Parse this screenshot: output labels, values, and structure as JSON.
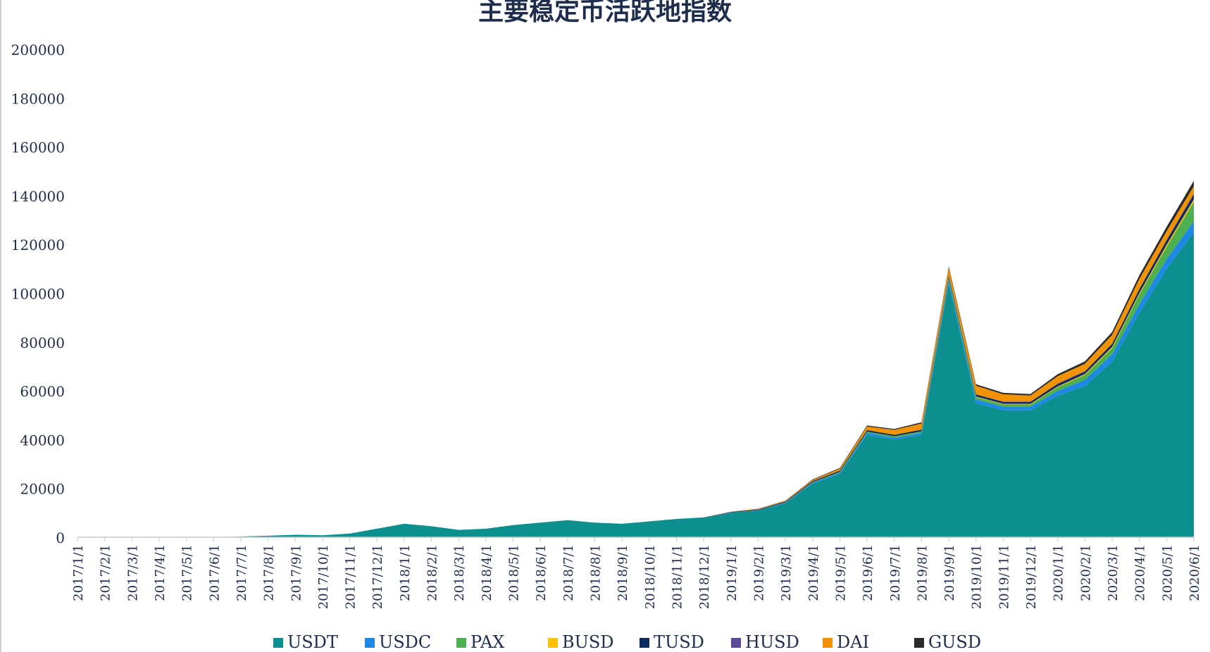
{
  "chart_data": {
    "type": "area",
    "stacked": true,
    "title": "主要稳定币活跃地指数",
    "xlabel": "",
    "ylabel": "",
    "ylim": [
      0,
      200000
    ],
    "y_ticks": [
      "200000",
      "180000",
      "160000",
      "140000",
      "120000",
      "100000",
      "80000",
      "60000",
      "40000",
      "20000",
      "0"
    ],
    "x_ticks": [
      "2017/1/1",
      "2017/2/1",
      "2017/3/1",
      "2017/4/1",
      "2017/5/1",
      "2017/6/1",
      "2017/7/1",
      "2017/8/1",
      "2017/9/1",
      "2017/10/1",
      "2017/11/1",
      "2017/12/1",
      "2018/1/1",
      "2018/2/1",
      "2018/3/1",
      "2018/4/1",
      "2018/5/1",
      "2018/6/1",
      "2018/7/1",
      "2018/8/1",
      "2018/9/1",
      "2018/10/1",
      "2018/11/1",
      "2018/12/1",
      "2019/1/1",
      "2019/2/1",
      "2019/3/1",
      "2019/4/1",
      "2019/5/1",
      "2019/6/1",
      "2019/7/1",
      "2019/8/1",
      "2019/9/1",
      "2019/10/1",
      "2019/11/1",
      "2019/12/1",
      "2020/1/1",
      "2020/2/1",
      "2020/3/1",
      "2020/4/1",
      "2020/5/1",
      "2020/6/1"
    ],
    "grid": false,
    "legend_position": "bottom",
    "series": [
      {
        "name": "USDT",
        "color": "#0e8f8f",
        "values": [
          0,
          0,
          0,
          0,
          0,
          0,
          300,
          600,
          1000,
          800,
          1500,
          3500,
          5500,
          4500,
          3000,
          3500,
          5000,
          6000,
          7000,
          6000,
          5500,
          6500,
          7500,
          8000,
          10000,
          11000,
          14000,
          22000,
          26000,
          42000,
          40000,
          42000,
          104000,
          55000,
          52000,
          52000,
          58000,
          62000,
          72000,
          92000,
          110000,
          125000
        ]
      },
      {
        "name": "USDC",
        "color": "#1e88e5",
        "values": [
          0,
          0,
          0,
          0,
          0,
          0,
          0,
          0,
          0,
          0,
          0,
          0,
          0,
          0,
          0,
          0,
          0,
          0,
          0,
          0,
          0,
          0,
          0,
          0,
          100,
          100,
          200,
          400,
          500,
          800,
          800,
          800,
          1500,
          1500,
          1500,
          1500,
          2000,
          2500,
          3000,
          3500,
          4000,
          4500
        ]
      },
      {
        "name": "PAX",
        "color": "#4caf50",
        "values": [
          0,
          0,
          0,
          0,
          0,
          0,
          0,
          0,
          0,
          0,
          0,
          0,
          0,
          0,
          0,
          0,
          0,
          0,
          0,
          0,
          0,
          0,
          0,
          0,
          0,
          0,
          100,
          200,
          300,
          500,
          600,
          600,
          1000,
          1000,
          1000,
          1000,
          1500,
          2000,
          2500,
          4000,
          5000,
          8000
        ]
      },
      {
        "name": "BUSD",
        "color": "#ffc107",
        "values": [
          0,
          0,
          0,
          0,
          0,
          0,
          0,
          0,
          0,
          0,
          0,
          0,
          0,
          0,
          0,
          0,
          0,
          0,
          0,
          0,
          0,
          0,
          0,
          0,
          0,
          0,
          0,
          0,
          0,
          0,
          0,
          0,
          0,
          200,
          200,
          200,
          300,
          400,
          500,
          600,
          800,
          1000
        ]
      },
      {
        "name": "TUSD",
        "color": "#0d2b5e",
        "values": [
          0,
          0,
          0,
          0,
          0,
          0,
          0,
          0,
          0,
          0,
          0,
          0,
          0,
          0,
          0,
          0,
          0,
          0,
          0,
          0,
          0,
          0,
          0,
          100,
          200,
          300,
          300,
          400,
          500,
          600,
          600,
          700,
          800,
          800,
          800,
          800,
          1000,
          1000,
          1200,
          1500,
          1800,
          2000
        ]
      },
      {
        "name": "HUSD",
        "color": "#5c4b99",
        "values": [
          0,
          0,
          0,
          0,
          0,
          0,
          0,
          0,
          0,
          0,
          0,
          0,
          0,
          0,
          0,
          0,
          0,
          0,
          0,
          0,
          0,
          0,
          0,
          0,
          0,
          0,
          0,
          0,
          0,
          0,
          0,
          0,
          100,
          100,
          100,
          100,
          200,
          200,
          200,
          300,
          300,
          400
        ]
      },
      {
        "name": "DAI",
        "color": "#f39200",
        "values": [
          0,
          0,
          0,
          0,
          0,
          0,
          0,
          0,
          0,
          0,
          0,
          0,
          0,
          0,
          0,
          0,
          0,
          0,
          0,
          0,
          0,
          0,
          0,
          0,
          100,
          200,
          300,
          500,
          800,
          1500,
          2000,
          2500,
          3000,
          3500,
          3000,
          2500,
          3000,
          3000,
          3500,
          4000,
          3500,
          3000
        ]
      },
      {
        "name": "GUSD",
        "color": "#2b2b2b",
        "values": [
          0,
          0,
          0,
          0,
          0,
          0,
          0,
          0,
          0,
          0,
          0,
          0,
          0,
          0,
          0,
          0,
          0,
          0,
          0,
          0,
          0,
          0,
          0,
          0,
          50,
          100,
          100,
          200,
          300,
          400,
          400,
          500,
          600,
          600,
          600,
          600,
          800,
          1000,
          1200,
          1500,
          1800,
          2200
        ]
      }
    ]
  }
}
